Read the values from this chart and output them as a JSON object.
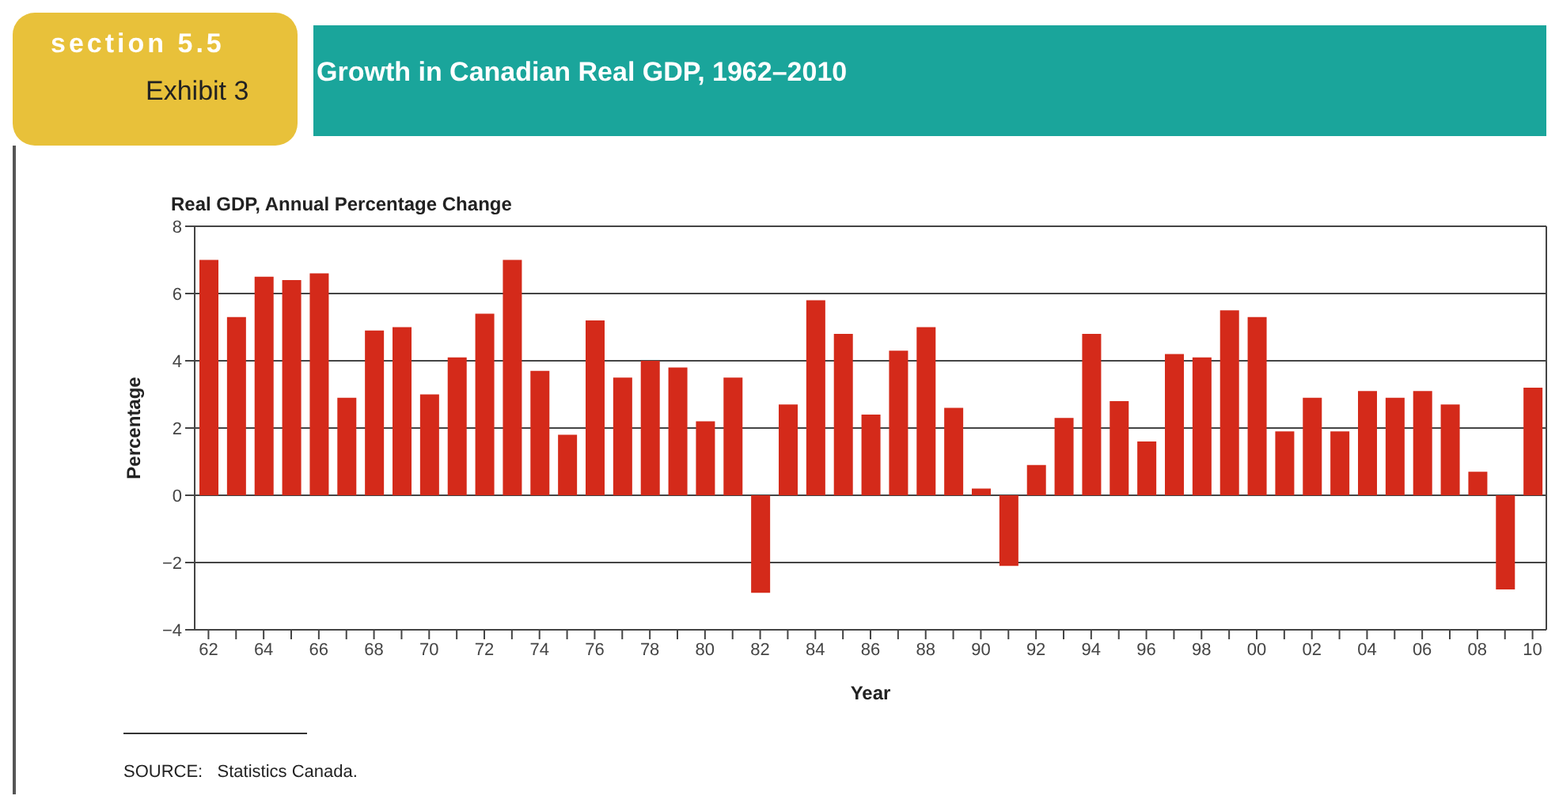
{
  "chart_data": {
    "type": "bar",
    "title": "Growth in Canadian Real GDP, 1962–2010",
    "subtitle": "Real GDP, Annual Percentage Change",
    "xlabel": "Year",
    "ylabel": "Percentage",
    "annotations": [
      "section 5.5",
      "Exhibit 3",
      "SOURCE:   Statistics Canada."
    ],
    "categories": [
      "62",
      null,
      "64",
      null,
      "66",
      null,
      "68",
      null,
      "70",
      null,
      "72",
      null,
      "74",
      null,
      "76",
      null,
      "78",
      null,
      "80",
      null,
      "82",
      null,
      "84",
      null,
      "86",
      null,
      "88",
      null,
      "90",
      null,
      "92",
      null,
      "94",
      null,
      "96",
      null,
      "98",
      null,
      "00",
      null,
      "02",
      null,
      "04",
      null,
      "06",
      null,
      "08",
      null,
      "10"
    ],
    "values": [
      7.0,
      5.3,
      6.5,
      6.4,
      6.6,
      2.9,
      4.9,
      5.0,
      3.0,
      4.1,
      5.4,
      7.0,
      3.7,
      1.8,
      5.2,
      3.5,
      4.0,
      3.8,
      2.2,
      3.5,
      -2.9,
      2.7,
      5.8,
      4.8,
      2.4,
      4.3,
      5.0,
      2.6,
      0.2,
      -2.1,
      0.9,
      2.3,
      4.8,
      2.8,
      1.6,
      4.2,
      4.1,
      5.5,
      5.3,
      1.9,
      2.9,
      1.9,
      3.1,
      2.9,
      3.1,
      2.7,
      0.7,
      -2.8,
      3.2
    ],
    "color": "#d42a1a",
    "ylim": [
      -4,
      8
    ],
    "yticks": [
      {
        "value": -4,
        "label": "−4"
      },
      {
        "value": -2,
        "label": "−2"
      },
      0,
      2,
      4,
      6,
      8
    ],
    "grid": "y"
  }
}
